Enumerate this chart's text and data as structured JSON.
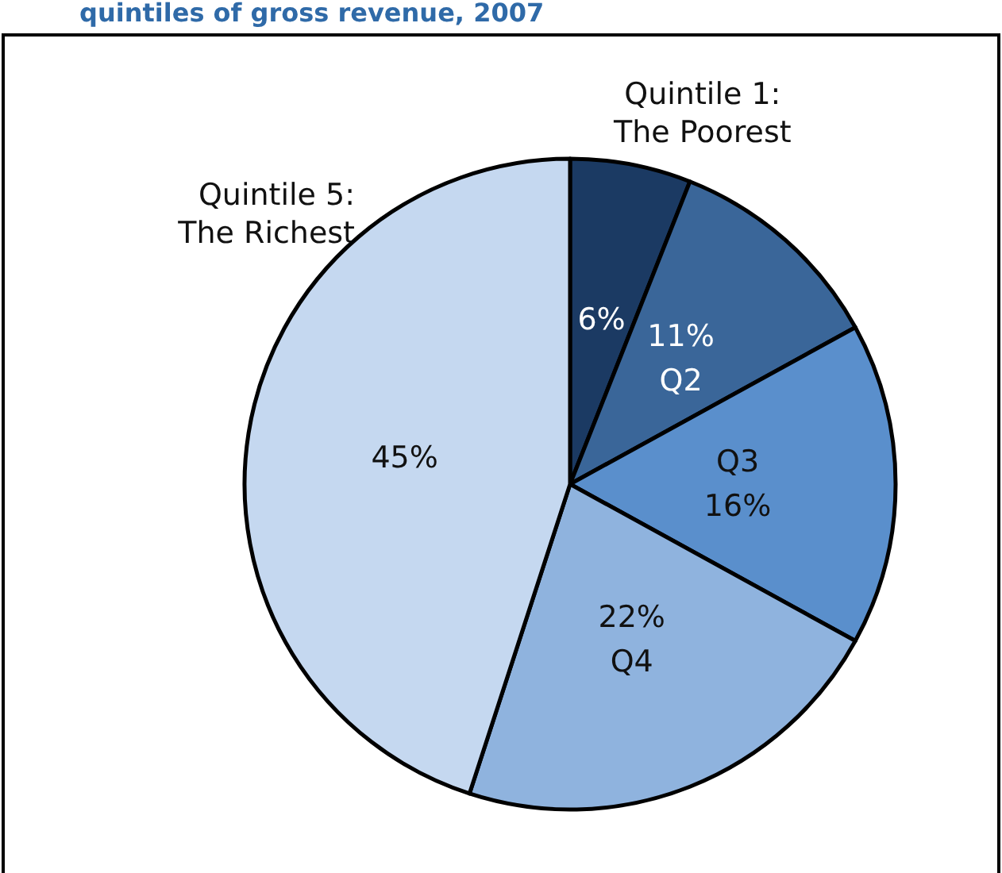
{
  "chart_data": {
    "type": "pie",
    "title": "quintiles of gross revenue, 2007",
    "categories": [
      "Quintile 1:\nThe Poorest",
      "Q2",
      "Q3",
      "Q4",
      "Quintile 5:\nThe Richest"
    ],
    "values": [
      6,
      11,
      16,
      22,
      45
    ],
    "value_labels": [
      "6%",
      "11%",
      "16%",
      "22%",
      "45%"
    ],
    "colors": [
      "#1b3a63",
      "#3a6699",
      "#5a8fcc",
      "#8fb3de",
      "#c5d8f0"
    ]
  }
}
